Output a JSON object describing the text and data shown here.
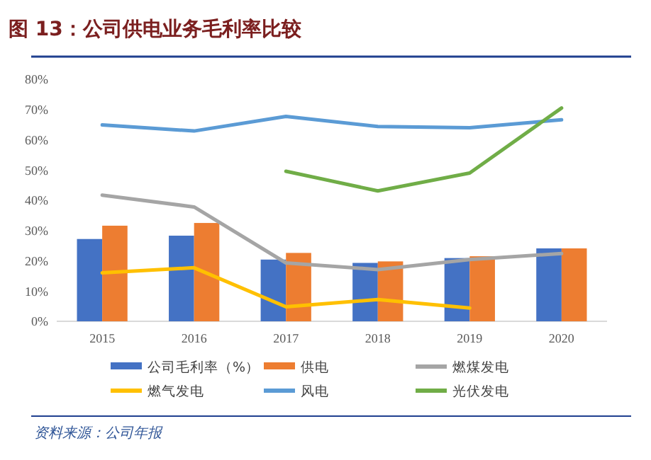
{
  "chart_data": {
    "type": "bar",
    "title": "图 13：公司供电业务毛利率比较",
    "annotations": [
      "资料来源：公司年报"
    ],
    "categories": [
      "2015",
      "2016",
      "2017",
      "2018",
      "2019",
      "2020"
    ],
    "series": [
      {
        "name": "公司毛利率（%）",
        "color": "#4472c4",
        "values": [
          27.2,
          28.3,
          20.4,
          19.3,
          20.9,
          24.1
        ]
      },
      {
        "name": "供电",
        "color": "#ed7d31",
        "values": [
          31.6,
          32.5,
          22.6,
          19.8,
          21.5,
          24.1
        ]
      },
      {
        "name": "燃煤发电",
        "type": "line",
        "color": "#a5a5a5",
        "values": [
          41.7,
          37.8,
          19.3,
          17.1,
          20.4,
          22.4
        ]
      },
      {
        "name": "燃气发电",
        "type": "line",
        "color": "#ffc000",
        "values": [
          16.0,
          17.7,
          4.8,
          7.2,
          4.4,
          null
        ]
      },
      {
        "name": "风电",
        "type": "line",
        "color": "#5b9bd5",
        "values": [
          64.9,
          62.9,
          67.7,
          64.4,
          64.0,
          66.6
        ]
      },
      {
        "name": "光伏发电",
        "type": "line",
        "color": "#70ad47",
        "values": [
          null,
          null,
          49.6,
          43.1,
          49.0,
          70.5
        ]
      }
    ],
    "ylim": [
      0,
      80
    ],
    "yticks": [
      {
        "value": 0,
        "label": "0%"
      },
      {
        "value": 10,
        "label": "10%"
      },
      {
        "value": 20,
        "label": "20%"
      },
      {
        "value": 30,
        "label": "30%"
      },
      {
        "value": 40,
        "label": "40%"
      },
      {
        "value": 50,
        "label": "50%"
      },
      {
        "value": 60,
        "label": "60%"
      },
      {
        "value": 70,
        "label": "70%"
      },
      {
        "value": 80,
        "label": "80%"
      }
    ],
    "grid": false,
    "legend": "bottom"
  }
}
